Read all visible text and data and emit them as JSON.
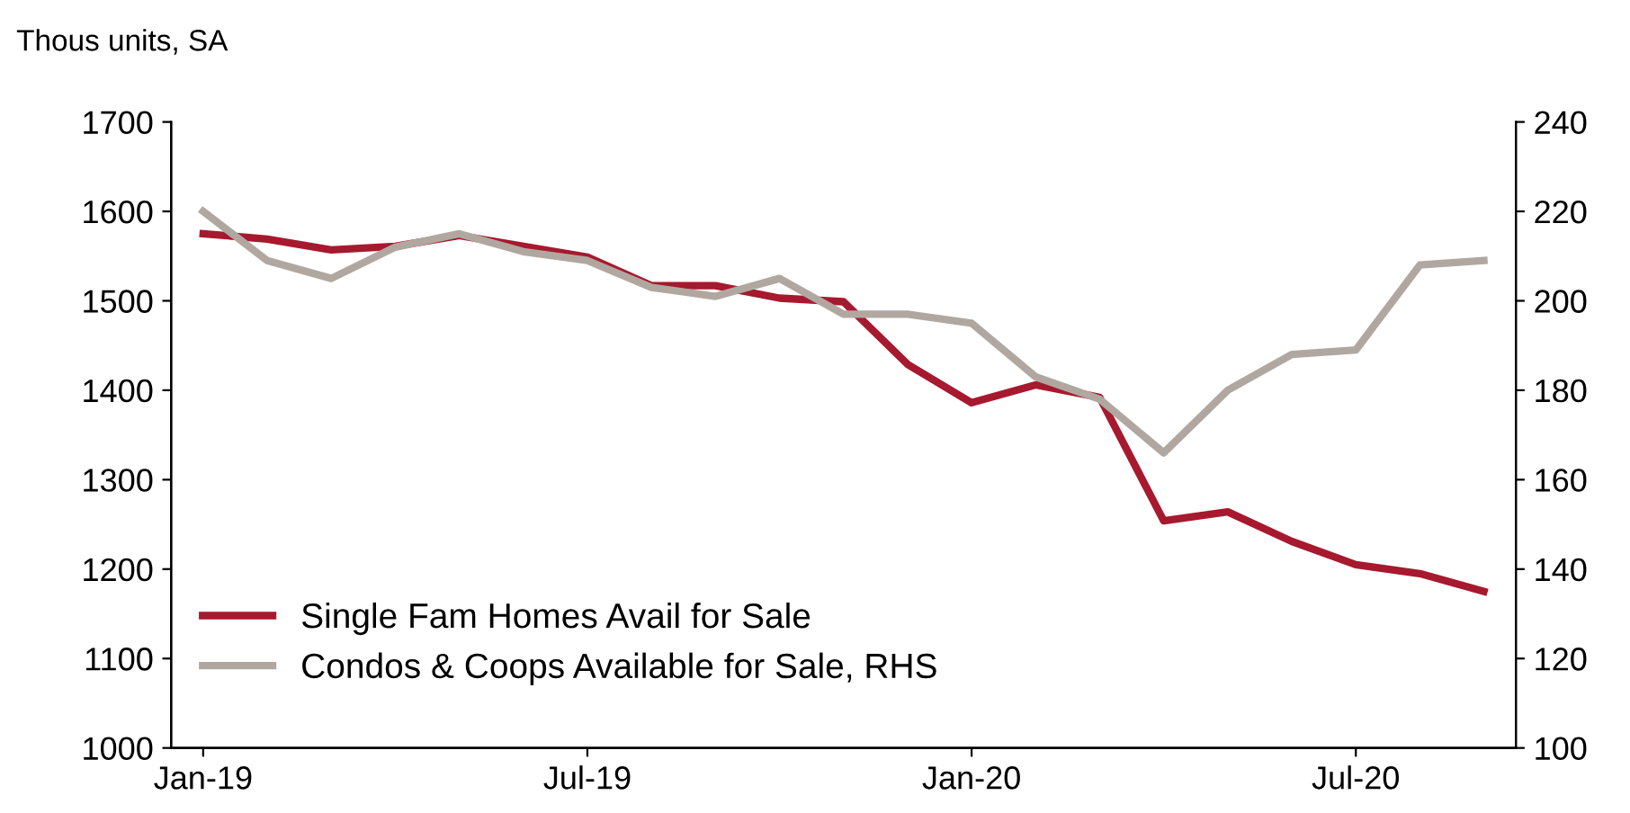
{
  "chart_data": {
    "type": "line",
    "ylabel": "Thous units, SA",
    "categories": [
      "Jan-19",
      null,
      null,
      null,
      null,
      null,
      "Jul-19",
      null,
      null,
      null,
      null,
      null,
      "Jan-20",
      null,
      null,
      null,
      null,
      null,
      "Jul-20",
      null,
      null
    ],
    "series": [
      {
        "name": "Single Fam Homes Avail for Sale",
        "color": "#a6192e",
        "values": [
          1575,
          1569,
          1557,
          1561,
          1573,
          1561,
          1549,
          1517,
          1517,
          1503,
          1499,
          1429,
          1386,
          1406,
          1392,
          1254,
          1264,
          1231,
          1205,
          1195,
          1175
        ]
      },
      {
        "name": "Condos & Coops Available for Sale, RHS",
        "color": "#b0a8a0",
        "axis": "y2",
        "values": [
          220,
          209,
          205,
          212,
          215,
          211,
          209,
          203,
          201,
          205,
          197,
          197,
          195,
          183,
          178,
          166,
          180,
          188,
          189,
          208,
          209
        ]
      }
    ],
    "ylim": [
      1000,
      1700
    ],
    "yticks": [
      1000,
      1100,
      1200,
      1300,
      1400,
      1500,
      1600,
      1700
    ],
    "y2lim": [
      100,
      240
    ],
    "y2ticks": [
      100,
      120,
      140,
      160,
      180,
      200,
      220,
      240
    ],
    "grid": false,
    "legend": "bottom left",
    "marker": "none",
    "line_style": "solid"
  }
}
